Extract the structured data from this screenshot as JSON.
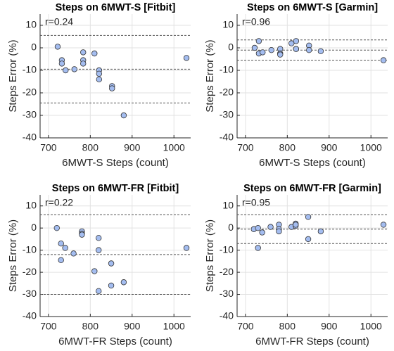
{
  "chart_data": [
    {
      "type": "scatter",
      "title": "Steps on 6MWT-S [Fitbit]",
      "xlabel": "6MWT-S Steps (count)",
      "ylabel": "Steps Error (%)",
      "annotation": "r=0.24",
      "x": [
        722,
        732,
        732,
        741,
        762,
        783,
        783,
        783,
        810,
        821,
        821,
        821,
        852,
        852,
        880,
        1030
      ],
      "values": [
        0.5,
        -5.5,
        -7,
        -10,
        -9.5,
        -2,
        -5.5,
        -7,
        -2.5,
        -10,
        -11.5,
        -14,
        -17,
        -18,
        -30,
        -4.5
      ],
      "reference_lines": [
        5.5,
        -9.5,
        -24.5
      ],
      "color": "#a4bdf0",
      "xlim": [
        680,
        1040
      ],
      "ylim": [
        -40,
        15
      ],
      "xticks": [
        700,
        800,
        900,
        1000
      ],
      "yticks": [
        -40,
        -30,
        -20,
        -10,
        0,
        10
      ],
      "grid": true
    },
    {
      "type": "scatter",
      "title": "Steps on 6MWT-S [Garmin]",
      "xlabel": "6MWT-S Steps (count)",
      "ylabel": "Steps Error (%)",
      "annotation": "r=0.96",
      "x": [
        722,
        732,
        732,
        741,
        762,
        783,
        783,
        783,
        810,
        821,
        821,
        821,
        852,
        852,
        880,
        1030
      ],
      "values": [
        0,
        3,
        -2.5,
        -2,
        -1,
        -0.5,
        -2.5,
        -3,
        2,
        3,
        -0.5,
        -0.5,
        1,
        -1,
        -1.5,
        -5.5
      ],
      "reference_lines": [
        3.5,
        -1,
        -5.5
      ],
      "color": "#a4bdf0",
      "xlim": [
        680,
        1040
      ],
      "ylim": [
        -40,
        15
      ],
      "xticks": [
        700,
        800,
        900,
        1000
      ],
      "yticks": [
        -40,
        -30,
        -20,
        -10,
        0,
        10
      ],
      "grid": true
    },
    {
      "type": "scatter",
      "title": "Steps on 6MWT-FR [Fitbit]",
      "xlabel": "6MWT-FR Steps (count)",
      "ylabel": "Steps Error (%)",
      "annotation": "r=0.22",
      "x": [
        720,
        730,
        730,
        740,
        760,
        780,
        780,
        780,
        810,
        820,
        820,
        820,
        850,
        850,
        880,
        1030
      ],
      "values": [
        0,
        -7,
        -14.5,
        -9,
        -11.5,
        -1.5,
        -2.5,
        -3,
        -19.5,
        -4.5,
        -10,
        -28.5,
        -16,
        -26,
        -24.5,
        -9
      ],
      "reference_lines": [
        6,
        -12,
        -30
      ],
      "color": "#a4bdf0",
      "xlim": [
        680,
        1040
      ],
      "ylim": [
        -40,
        15
      ],
      "xticks": [
        700,
        800,
        900,
        1000
      ],
      "yticks": [
        -40,
        -30,
        -20,
        -10,
        0,
        10
      ],
      "grid": true
    },
    {
      "type": "scatter",
      "title": "Steps on 6MWT-FR [Garmin]",
      "xlabel": "6MWT-FR Steps (count)",
      "ylabel": "Steps Error (%)",
      "annotation": "r=0.95",
      "x": [
        720,
        730,
        730,
        740,
        760,
        780,
        780,
        780,
        810,
        820,
        820,
        820,
        850,
        850,
        880,
        1030
      ],
      "values": [
        -0.5,
        0,
        -9,
        -2,
        0.5,
        1.5,
        -0.5,
        -1.5,
        0.5,
        2,
        1,
        1.5,
        5,
        -5,
        -1.5,
        1.5
      ],
      "reference_lines": [
        6,
        -0.5,
        -7
      ],
      "color": "#a4bdf0",
      "xlim": [
        680,
        1040
      ],
      "ylim": [
        -40,
        15
      ],
      "xticks": [
        700,
        800,
        900,
        1000
      ],
      "yticks": [
        -40,
        -30,
        -20,
        -10,
        0,
        10
      ],
      "grid": true
    }
  ]
}
